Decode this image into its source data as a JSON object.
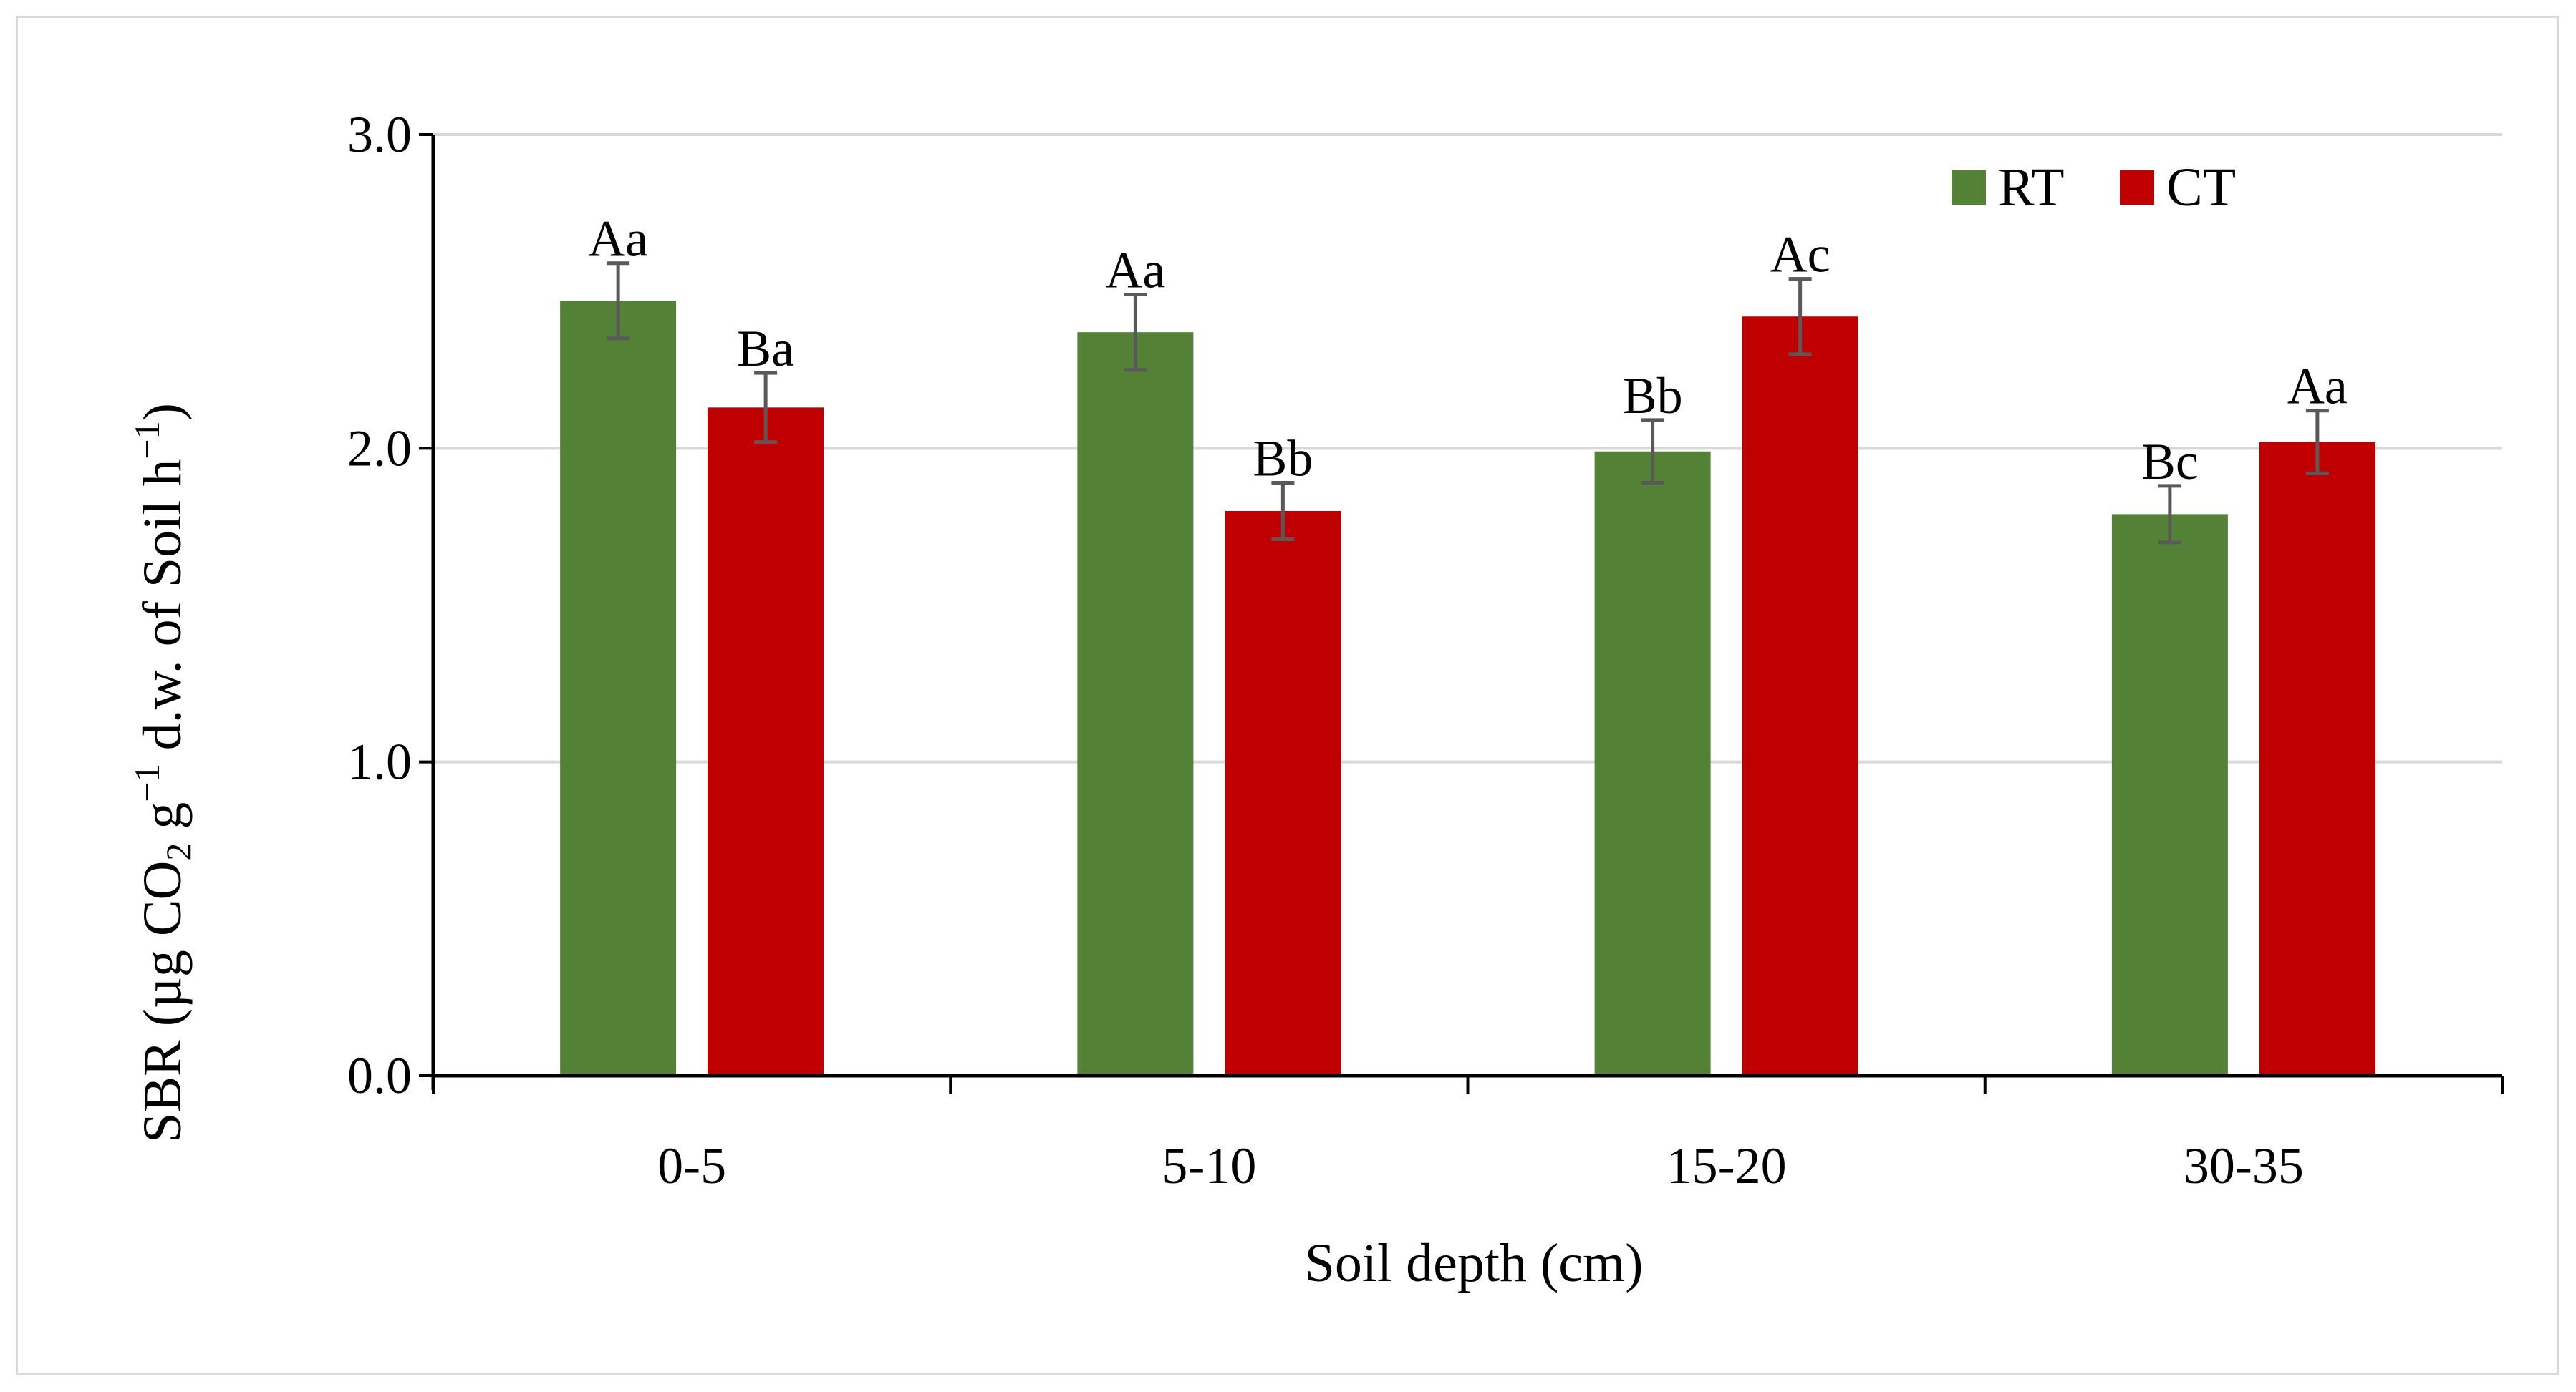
{
  "chart_data": {
    "type": "bar",
    "title": "",
    "xlabel": "Soil depth (cm)",
    "ylabel": {
      "prefix": "SBR (µg CO",
      "co2_sub": "2",
      "mid": " g",
      "g_sup": "−1",
      "mid2": " d.w. of Soil h",
      "h_sup": "−1",
      "suffix": ")"
    },
    "ylim": [
      0,
      3.0
    ],
    "yticks": [
      "0.0",
      "1.0",
      "2.0",
      "3.0"
    ],
    "grid": true,
    "legend_position": "top-right",
    "categories": [
      "0-5",
      "5-10",
      "15-20",
      "30-35"
    ],
    "series": [
      {
        "name": "RT",
        "color": "#538135",
        "values": [
          2.47,
          2.37,
          1.99,
          1.79
        ],
        "errors": [
          0.12,
          0.12,
          0.1,
          0.09
        ],
        "labels": [
          "Aa",
          "Aa",
          "Bb",
          "Bc"
        ]
      },
      {
        "name": "CT",
        "color": "#c00000",
        "values": [
          2.13,
          1.8,
          2.42,
          2.02
        ],
        "errors": [
          0.11,
          0.09,
          0.12,
          0.1
        ],
        "labels": [
          "Ba",
          "Bb",
          "Ac",
          "Aa"
        ]
      }
    ]
  }
}
